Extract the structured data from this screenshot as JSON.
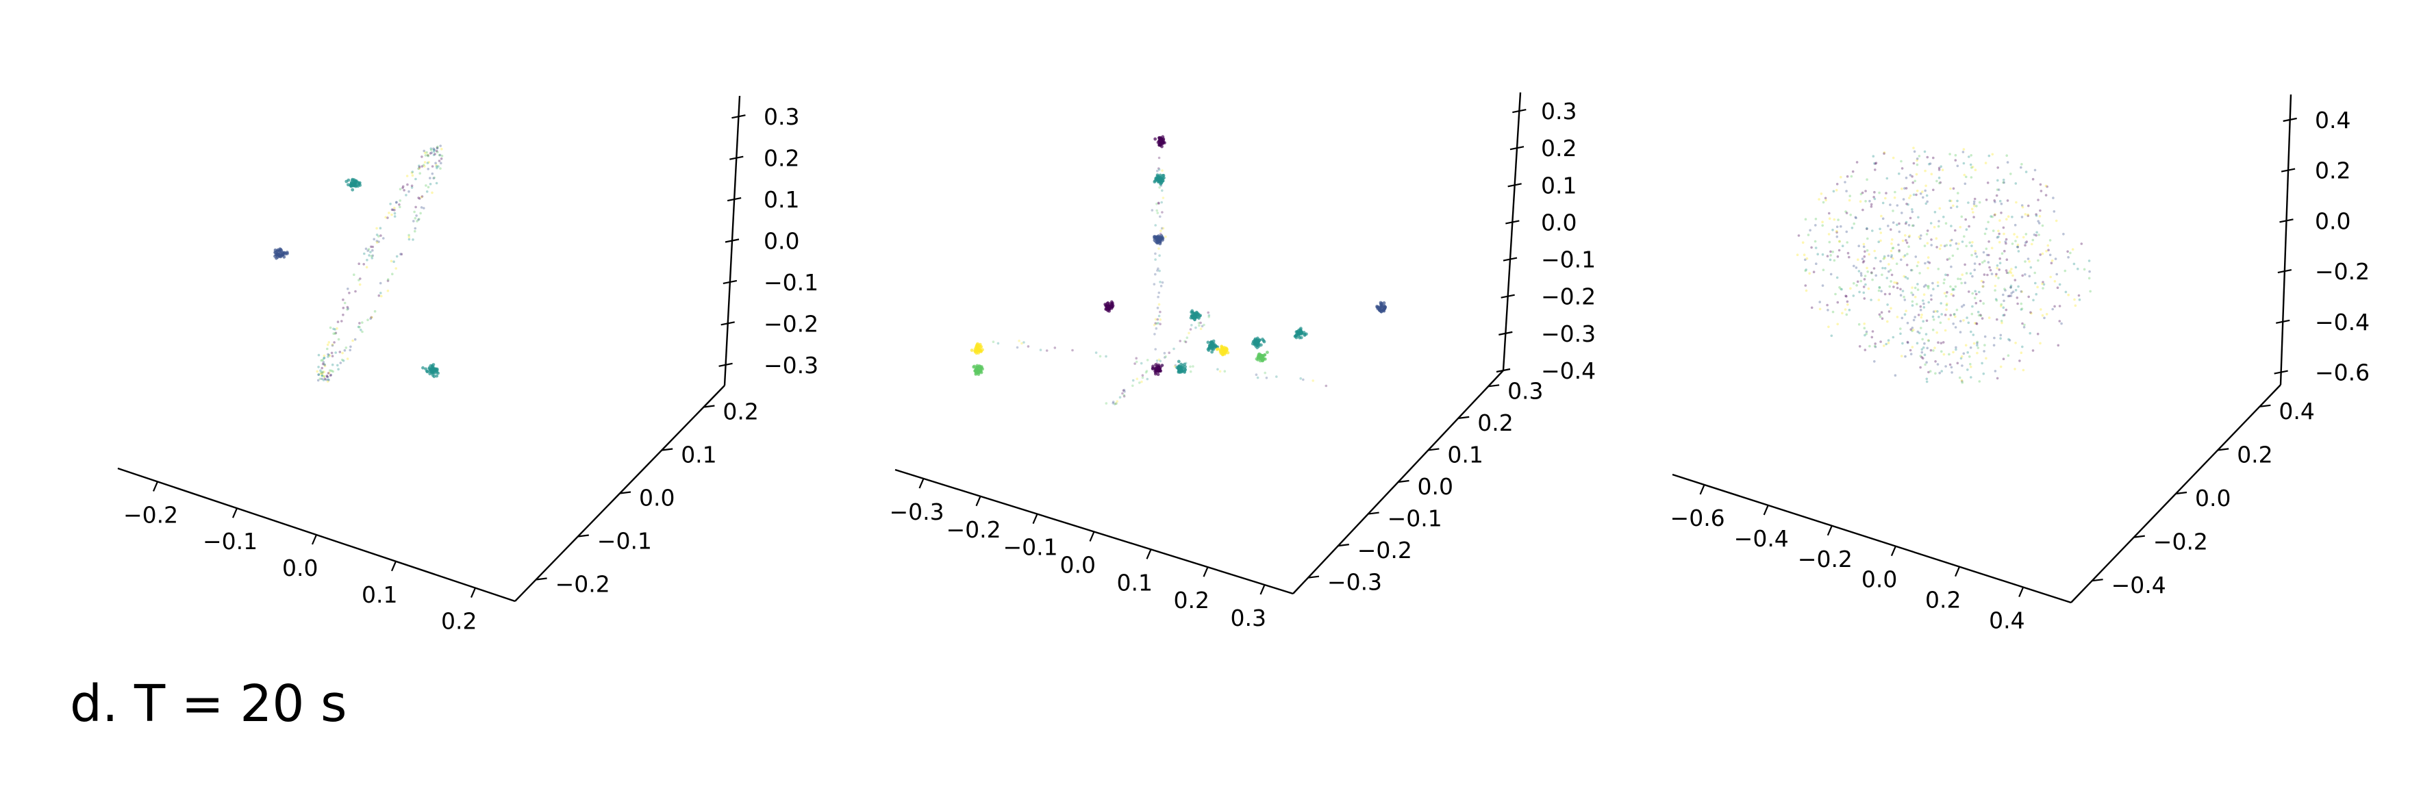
{
  "caption": "d. T = 20 s",
  "colormap": [
    "#440154",
    "#3b528b",
    "#21918c",
    "#5ec962",
    "#fde725"
  ],
  "chart_data": [
    {
      "type": "scatter",
      "subtype": "scatter3d",
      "title": "",
      "grid": false,
      "x_ticks": [
        -0.2,
        -0.1,
        0.0,
        0.1,
        0.2
      ],
      "y_ticks": [
        -0.2,
        -0.1,
        0.0,
        0.1,
        0.2
      ],
      "z_ticks": [
        -0.3,
        -0.2,
        -0.1,
        0.0,
        0.1,
        0.2,
        0.3
      ],
      "xlim": [
        -0.25,
        0.25
      ],
      "ylim": [
        -0.25,
        0.25
      ],
      "zlim": [
        -0.35,
        0.35
      ],
      "point_structure": "points on a tilted ellipse (ring) with three dense clusters",
      "clusters": [
        {
          "x": -0.05,
          "y": 0.05,
          "z": 0.16,
          "color": "#21918c"
        },
        {
          "x": -0.12,
          "y": -0.02,
          "z": 0.0,
          "color": "#3b528b"
        },
        {
          "x": 0.06,
          "y": 0.02,
          "z": -0.27,
          "color": "#21918c"
        }
      ]
    },
    {
      "type": "scatter",
      "subtype": "scatter3d",
      "title": "",
      "grid": false,
      "x_ticks": [
        -0.3,
        -0.2,
        -0.1,
        0.0,
        0.1,
        0.2,
        0.3
      ],
      "y_ticks": [
        -0.3,
        -0.2,
        -0.1,
        0.0,
        0.1,
        0.2,
        0.3
      ],
      "z_ticks": [
        -0.4,
        -0.3,
        -0.2,
        -0.1,
        0.0,
        0.1,
        0.2,
        0.3
      ],
      "xlim": [
        -0.35,
        0.35
      ],
      "ylim": [
        -0.35,
        0.35
      ],
      "zlim": [
        -0.4,
        0.35
      ],
      "point_structure": "points along three orthogonal lines with small colored clusters",
      "clusters": [
        {
          "x": 0.0,
          "y": 0.0,
          "z": 0.33,
          "color": "#440154"
        },
        {
          "x": 0.0,
          "y": 0.0,
          "z": 0.22,
          "color": "#21918c"
        },
        {
          "x": 0.0,
          "y": 0.0,
          "z": 0.05,
          "color": "#3b528b"
        },
        {
          "x": -0.08,
          "y": -0.02,
          "z": -0.15,
          "color": "#440154"
        },
        {
          "x": -0.3,
          "y": -0.05,
          "z": -0.3,
          "color": "#fde725"
        },
        {
          "x": -0.3,
          "y": -0.05,
          "z": -0.36,
          "color": "#5ec962"
        },
        {
          "x": 0.0,
          "y": 0.0,
          "z": -0.32,
          "color": "#440154"
        },
        {
          "x": 0.05,
          "y": 0.05,
          "z": -0.18,
          "color": "#21918c"
        },
        {
          "x": 0.08,
          "y": 0.05,
          "z": -0.26,
          "color": "#21918c"
        },
        {
          "x": 0.15,
          "y": 0.1,
          "z": -0.3,
          "color": "#5ec962"
        },
        {
          "x": 0.04,
          "y": 0.0,
          "z": -0.31,
          "color": "#21918c"
        },
        {
          "x": 0.1,
          "y": 0.05,
          "z": -0.27,
          "color": "#fde725"
        },
        {
          "x": 0.12,
          "y": 0.18,
          "z": -0.3,
          "color": "#21918c"
        },
        {
          "x": 0.18,
          "y": 0.22,
          "z": -0.28,
          "color": "#21918c"
        },
        {
          "x": 0.3,
          "y": 0.3,
          "z": -0.22,
          "color": "#3b528b"
        }
      ]
    },
    {
      "type": "scatter",
      "subtype": "scatter3d",
      "title": "",
      "grid": false,
      "x_ticks": [
        -0.6,
        -0.4,
        -0.2,
        0.0,
        0.2,
        0.4
      ],
      "y_ticks": [
        -0.4,
        -0.2,
        0.0,
        0.2,
        0.4
      ],
      "z_ticks": [
        -0.6,
        -0.4,
        -0.2,
        0.0,
        0.2,
        0.4
      ],
      "xlim": [
        -0.7,
        0.55
      ],
      "ylim": [
        -0.5,
        0.5
      ],
      "zlim": [
        -0.65,
        0.5
      ],
      "point_structure": "uniform diffuse spherical cloud",
      "clusters": []
    }
  ]
}
